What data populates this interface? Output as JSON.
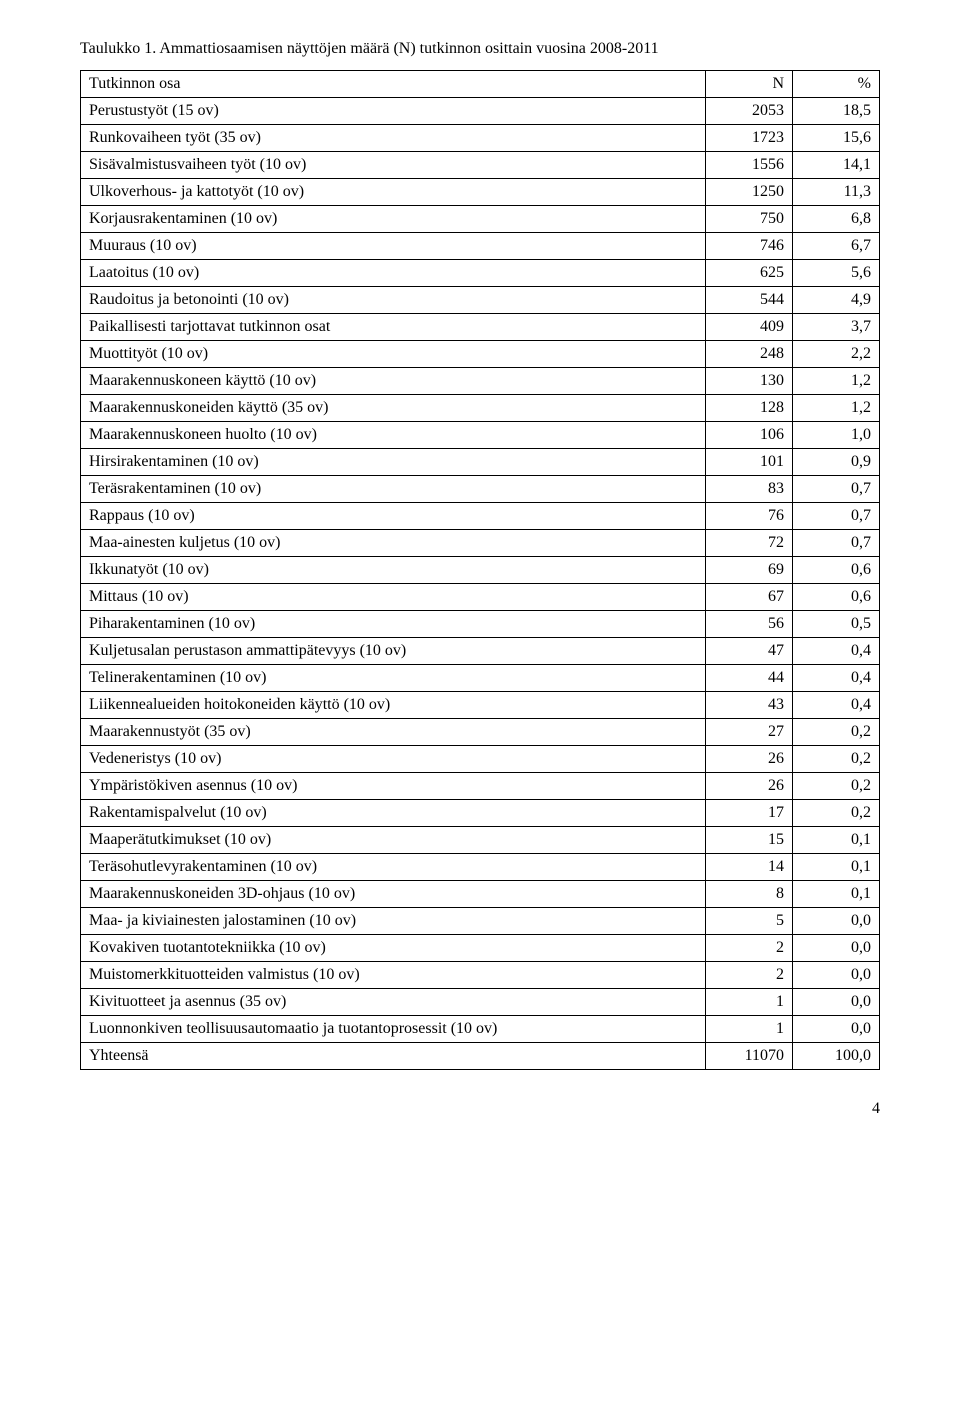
{
  "caption": "Taulukko 1. Ammattiosaamisen näyttöjen määrä (N) tutkinnon osittain vuosina 2008-2011",
  "headers": {
    "c0": "Tutkinnon osa",
    "c1": "N",
    "c2": "%"
  },
  "rows": [
    {
      "c0": "Perustustyöt (15 ov)",
      "c1": "2053",
      "c2": "18,5"
    },
    {
      "c0": "Runkovaiheen työt (35 ov)",
      "c1": "1723",
      "c2": "15,6"
    },
    {
      "c0": "Sisävalmistusvaiheen työt (10 ov)",
      "c1": "1556",
      "c2": "14,1"
    },
    {
      "c0": "Ulkoverhous- ja kattotyöt (10 ov)",
      "c1": "1250",
      "c2": "11,3"
    },
    {
      "c0": "Korjausrakentaminen (10 ov)",
      "c1": "750",
      "c2": "6,8"
    },
    {
      "c0": "Muuraus (10 ov)",
      "c1": "746",
      "c2": "6,7"
    },
    {
      "c0": "Laatoitus (10 ov)",
      "c1": "625",
      "c2": "5,6"
    },
    {
      "c0": "Raudoitus ja betonointi (10 ov)",
      "c1": "544",
      "c2": "4,9"
    },
    {
      "c0": "Paikallisesti tarjottavat tutkinnon osat",
      "c1": "409",
      "c2": "3,7"
    },
    {
      "c0": "Muottityöt (10 ov)",
      "c1": "248",
      "c2": "2,2"
    },
    {
      "c0": "Maarakennuskoneen käyttö (10 ov)",
      "c1": "130",
      "c2": "1,2"
    },
    {
      "c0": "Maarakennuskoneiden käyttö (35 ov)",
      "c1": "128",
      "c2": "1,2"
    },
    {
      "c0": "Maarakennuskoneen huolto (10 ov)",
      "c1": "106",
      "c2": "1,0"
    },
    {
      "c0": "Hirsirakentaminen (10 ov)",
      "c1": "101",
      "c2": "0,9"
    },
    {
      "c0": "Teräsrakentaminen (10 ov)",
      "c1": "83",
      "c2": "0,7"
    },
    {
      "c0": "Rappaus (10 ov)",
      "c1": "76",
      "c2": "0,7"
    },
    {
      "c0": "Maa-ainesten kuljetus (10 ov)",
      "c1": "72",
      "c2": "0,7"
    },
    {
      "c0": "Ikkunatyöt (10 ov)",
      "c1": "69",
      "c2": "0,6"
    },
    {
      "c0": "Mittaus (10 ov)",
      "c1": "67",
      "c2": "0,6"
    },
    {
      "c0": "Piharakentaminen (10 ov)",
      "c1": "56",
      "c2": "0,5"
    },
    {
      "c0": "Kuljetusalan perustason ammattipätevyys (10 ov)",
      "c1": "47",
      "c2": "0,4"
    },
    {
      "c0": "Telinerakentaminen (10 ov)",
      "c1": "44",
      "c2": "0,4"
    },
    {
      "c0": "Liikennealueiden hoitokoneiden käyttö (10 ov)",
      "c1": "43",
      "c2": "0,4"
    },
    {
      "c0": "Maarakennustyöt (35 ov)",
      "c1": "27",
      "c2": "0,2"
    },
    {
      "c0": "Vedeneristys (10 ov)",
      "c1": "26",
      "c2": "0,2"
    },
    {
      "c0": "Ympäristökiven asennus (10 ov)",
      "c1": "26",
      "c2": "0,2"
    },
    {
      "c0": "Rakentamispalvelut (10 ov)",
      "c1": "17",
      "c2": "0,2"
    },
    {
      "c0": "Maaperätutkimukset (10 ov)",
      "c1": "15",
      "c2": "0,1"
    },
    {
      "c0": "Teräsohutlevyrakentaminen (10 ov)",
      "c1": "14",
      "c2": "0,1"
    },
    {
      "c0": "Maarakennuskoneiden 3D-ohjaus (10 ov)",
      "c1": "8",
      "c2": "0,1"
    },
    {
      "c0": "Maa- ja kiviainesten jalostaminen (10 ov)",
      "c1": "5",
      "c2": "0,0"
    },
    {
      "c0": "Kovakiven tuotantotekniikka (10 ov)",
      "c1": "2",
      "c2": "0,0"
    },
    {
      "c0": "Muistomerkkituotteiden valmistus (10 ov)",
      "c1": "2",
      "c2": "0,0"
    },
    {
      "c0": "Kivituotteet ja asennus (35 ov)",
      "c1": "1",
      "c2": "0,0"
    },
    {
      "c0": "Luonnonkiven teollisuusautomaatio ja tuotantoprosessit (10 ov)",
      "c1": "1",
      "c2": "0,0"
    },
    {
      "c0": "Yhteensä",
      "c1": "11070",
      "c2": "100,0"
    }
  ],
  "page_number": "4"
}
